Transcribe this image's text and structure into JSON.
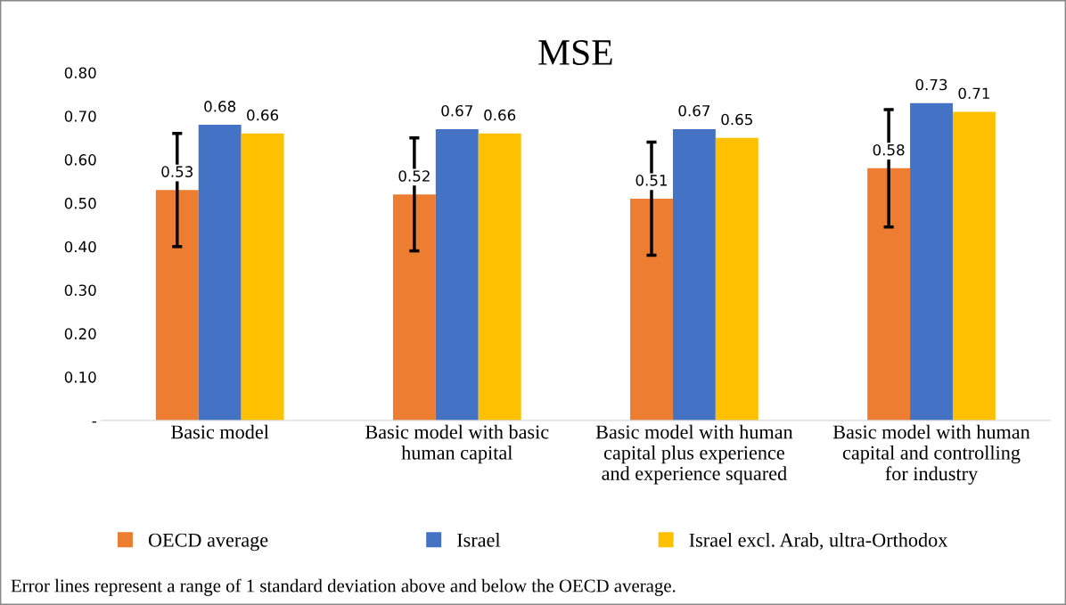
{
  "chart_data": {
    "type": "bar",
    "title": "MSE",
    "categories": [
      "Basic model",
      "Basic model with basic human capital",
      "Basic model with human capital plus experience and experience squared",
      "Basic model with human capital and controlling for industry"
    ],
    "series": [
      {
        "name": "OECD average",
        "color": "#ed7d31",
        "values": [
          0.53,
          0.52,
          0.51,
          0.58
        ],
        "errors": [
          0.13,
          0.13,
          0.13,
          0.135
        ]
      },
      {
        "name": "Israel",
        "color": "#4472c4",
        "values": [
          0.68,
          0.67,
          0.67,
          0.73
        ]
      },
      {
        "name": "Israel excl. Arab, ultra-Orthodox",
        "color": "#ffc000",
        "values": [
          0.66,
          0.66,
          0.65,
          0.71
        ]
      }
    ],
    "ylim": [
      0,
      0.8
    ],
    "yticks": [
      {
        "value": 0,
        "label": "-"
      },
      {
        "value": 0.1,
        "label": "0.10"
      },
      {
        "value": 0.2,
        "label": "0.20"
      },
      {
        "value": 0.3,
        "label": "0.30"
      },
      {
        "value": 0.4,
        "label": "0.40"
      },
      {
        "value": 0.5,
        "label": "0.50"
      },
      {
        "value": 0.6,
        "label": "0.60"
      },
      {
        "value": 0.7,
        "label": "0.70"
      },
      {
        "value": 0.8,
        "label": "0.80"
      }
    ],
    "data_labels": true,
    "grid": false,
    "legend": "bottom",
    "annotations": [
      "Error lines represent a range of 1 standard deviation above and below the OECD average."
    ]
  }
}
